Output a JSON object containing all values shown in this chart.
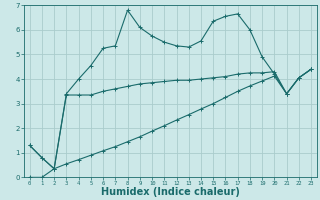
{
  "background_color": "#cce8e8",
  "grid_color": "#aacccc",
  "line_color": "#1a6b6b",
  "xlabel": "Humidex (Indice chaleur)",
  "xlabel_fontsize": 7,
  "xlim": [
    -0.5,
    23.5
  ],
  "ylim": [
    0,
    7
  ],
  "xticks": [
    0,
    1,
    2,
    3,
    4,
    5,
    6,
    7,
    8,
    9,
    10,
    11,
    12,
    13,
    14,
    15,
    16,
    17,
    18,
    19,
    20,
    21,
    22,
    23
  ],
  "yticks": [
    0,
    1,
    2,
    3,
    4,
    5,
    6,
    7
  ],
  "series1_x": [
    0,
    1,
    2,
    3,
    4,
    5,
    6,
    7,
    8,
    9,
    10,
    11,
    12,
    13,
    14,
    15,
    16,
    17,
    18,
    19,
    20,
    21,
    22,
    23
  ],
  "series1_y": [
    1.3,
    0.8,
    0.35,
    3.4,
    4.0,
    4.55,
    5.25,
    5.35,
    6.8,
    6.1,
    5.75,
    5.5,
    5.35,
    5.3,
    5.55,
    6.35,
    6.55,
    6.65,
    6.0,
    4.9,
    4.2,
    3.4,
    4.05,
    4.4
  ],
  "series2_x": [
    0,
    1,
    2,
    3,
    4,
    5,
    6,
    7,
    8,
    9,
    10,
    11,
    12,
    13,
    14,
    15,
    16,
    17,
    18,
    19,
    20,
    21,
    22,
    23
  ],
  "series2_y": [
    1.3,
    0.8,
    0.35,
    3.35,
    3.35,
    3.35,
    3.5,
    3.6,
    3.7,
    3.8,
    3.85,
    3.9,
    3.95,
    3.95,
    4.0,
    4.05,
    4.1,
    4.2,
    4.25,
    4.25,
    4.3,
    3.4,
    4.05,
    4.4
  ],
  "series3_x": [
    0,
    1,
    2,
    3,
    4,
    5,
    6,
    7,
    8,
    9,
    10,
    11,
    12,
    13,
    14,
    15,
    16,
    17,
    18,
    19,
    20,
    21,
    22,
    23
  ],
  "series3_y": [
    0.0,
    0.0,
    0.35,
    0.55,
    0.72,
    0.9,
    1.08,
    1.25,
    1.45,
    1.65,
    1.88,
    2.1,
    2.33,
    2.55,
    2.78,
    3.0,
    3.25,
    3.5,
    3.72,
    3.92,
    4.12,
    3.4,
    4.05,
    4.4
  ],
  "marker": "+",
  "markersize": 3,
  "linewidth": 0.8
}
